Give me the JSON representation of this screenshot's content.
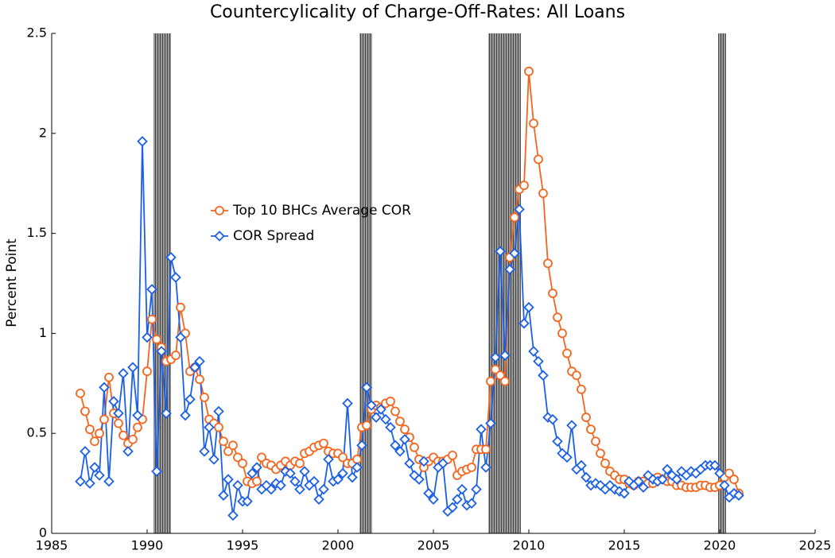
{
  "chart_data": {
    "type": "line",
    "title": "Countercylicality of Charge-Off-Rates: All Loans",
    "y_label": "Percent Point",
    "x": [
      1986.5,
      1986.75,
      1987,
      1987.25,
      1987.5,
      1987.75,
      1988,
      1988.25,
      1988.5,
      1988.75,
      1989,
      1989.25,
      1989.5,
      1989.75,
      1990,
      1990.25,
      1990.5,
      1990.75,
      1991,
      1991.25,
      1991.5,
      1991.75,
      1992,
      1992.25,
      1992.5,
      1992.75,
      1993,
      1993.25,
      1993.5,
      1993.75,
      1994,
      1994.25,
      1994.5,
      1994.75,
      1995,
      1995.25,
      1995.5,
      1995.75,
      1996,
      1996.25,
      1996.5,
      1996.75,
      1997,
      1997.25,
      1997.5,
      1997.75,
      1998,
      1998.25,
      1998.5,
      1998.75,
      1999,
      1999.25,
      1999.5,
      1999.75,
      2000,
      2000.25,
      2000.5,
      2000.75,
      2001,
      2001.25,
      2001.5,
      2001.75,
      2002,
      2002.25,
      2002.5,
      2002.75,
      2003,
      2003.25,
      2003.5,
      2003.75,
      2004,
      2004.25,
      2004.5,
      2004.75,
      2005,
      2005.25,
      2005.5,
      2005.75,
      2006,
      2006.25,
      2006.5,
      2006.75,
      2007,
      2007.25,
      2007.5,
      2007.75,
      2008,
      2008.25,
      2008.5,
      2008.75,
      2009,
      2009.25,
      2009.5,
      2009.75,
      2010,
      2010.25,
      2010.5,
      2010.75,
      2011,
      2011.25,
      2011.5,
      2011.75,
      2012,
      2012.25,
      2012.5,
      2012.75,
      2013,
      2013.25,
      2013.5,
      2013.75,
      2014,
      2014.25,
      2014.5,
      2014.75,
      2015,
      2015.25,
      2015.5,
      2015.75,
      2016,
      2016.25,
      2016.5,
      2016.75,
      2017,
      2017.25,
      2017.5,
      2017.75,
      2018,
      2018.25,
      2018.5,
      2018.75,
      2019,
      2019.25,
      2019.5,
      2019.75,
      2020,
      2020.25,
      2020.5,
      2020.75,
      2021
    ],
    "series": [
      {
        "name": "Top 10 BHCs Average COR",
        "color": "#f4661e",
        "marker": "circle",
        "values": [
          0.7,
          0.61,
          0.52,
          0.46,
          0.5,
          0.57,
          0.78,
          0.6,
          0.55,
          0.49,
          0.45,
          0.47,
          0.53,
          0.57,
          0.81,
          1.07,
          0.97,
          0.93,
          0.86,
          0.87,
          0.89,
          1.13,
          1.0,
          0.81,
          0.83,
          0.77,
          0.68,
          0.57,
          0.55,
          0.53,
          0.46,
          0.41,
          0.44,
          0.38,
          0.35,
          0.26,
          0.25,
          0.26,
          0.38,
          0.35,
          0.34,
          0.32,
          0.34,
          0.36,
          0.34,
          0.36,
          0.35,
          0.4,
          0.41,
          0.43,
          0.44,
          0.45,
          0.41,
          0.4,
          0.4,
          0.38,
          0.35,
          0.35,
          0.37,
          0.53,
          0.54,
          0.62,
          0.64,
          0.63,
          0.65,
          0.66,
          0.61,
          0.56,
          0.52,
          0.48,
          0.43,
          0.37,
          0.33,
          0.36,
          0.38,
          0.36,
          0.36,
          0.37,
          0.39,
          0.29,
          0.31,
          0.32,
          0.33,
          0.42,
          0.42,
          0.42,
          0.76,
          0.82,
          0.79,
          0.76,
          1.38,
          1.58,
          1.72,
          1.74,
          2.31,
          2.05,
          1.87,
          1.7,
          1.35,
          1.2,
          1.08,
          1.0,
          0.9,
          0.81,
          0.79,
          0.72,
          0.58,
          0.52,
          0.46,
          0.4,
          0.35,
          0.31,
          0.29,
          0.27,
          0.27,
          0.25,
          0.24,
          0.26,
          0.26,
          0.25,
          0.25,
          0.28,
          0.27,
          0.26,
          0.26,
          0.24,
          0.24,
          0.23,
          0.23,
          0.23,
          0.24,
          0.24,
          0.23,
          0.23,
          0.24,
          0.28,
          0.3,
          0.27,
          0.2
        ]
      },
      {
        "name": "COR Spread",
        "color": "#1a5fe6",
        "marker": "diamond",
        "values": [
          0.26,
          0.41,
          0.25,
          0.33,
          0.29,
          0.73,
          0.26,
          0.66,
          0.6,
          0.8,
          0.41,
          0.83,
          0.59,
          1.96,
          0.98,
          1.22,
          0.31,
          0.91,
          0.6,
          1.38,
          1.28,
          0.98,
          0.59,
          0.67,
          0.83,
          0.86,
          0.41,
          0.53,
          0.37,
          0.61,
          0.19,
          0.27,
          0.09,
          0.24,
          0.16,
          0.16,
          0.3,
          0.33,
          0.22,
          0.24,
          0.22,
          0.25,
          0.24,
          0.31,
          0.3,
          0.26,
          0.22,
          0.31,
          0.24,
          0.26,
          0.17,
          0.22,
          0.37,
          0.26,
          0.27,
          0.3,
          0.65,
          0.28,
          0.33,
          0.44,
          0.73,
          0.64,
          0.58,
          0.62,
          0.57,
          0.53,
          0.44,
          0.41,
          0.47,
          0.35,
          0.29,
          0.27,
          0.36,
          0.2,
          0.17,
          0.33,
          0.35,
          0.11,
          0.13,
          0.17,
          0.22,
          0.14,
          0.15,
          0.22,
          0.52,
          0.33,
          0.55,
          0.88,
          1.41,
          0.89,
          1.32,
          1.4,
          1.62,
          1.05,
          1.13,
          0.91,
          0.86,
          0.79,
          0.58,
          0.57,
          0.46,
          0.4,
          0.38,
          0.54,
          0.32,
          0.34,
          0.28,
          0.24,
          0.25,
          0.24,
          0.22,
          0.24,
          0.22,
          0.21,
          0.2,
          0.26,
          0.24,
          0.26,
          0.23,
          0.29,
          0.27,
          0.26,
          0.27,
          0.32,
          0.29,
          0.27,
          0.31,
          0.29,
          0.31,
          0.3,
          0.32,
          0.34,
          0.34,
          0.34,
          0.3,
          0.24,
          0.18,
          0.2,
          0.19
        ]
      }
    ],
    "shaded_periods": [
      [
        1990.33,
        1991.25
      ],
      [
        2001.13,
        2001.79
      ],
      [
        2007.88,
        2009.58
      ],
      [
        2019.92,
        2020.33
      ]
    ],
    "xlim": [
      1985,
      2025
    ],
    "xticks": [
      1985,
      1990,
      1995,
      2000,
      2005,
      2010,
      2015,
      2020,
      2025
    ],
    "ylim": [
      0,
      2.5
    ],
    "yticks": [
      0,
      0.5,
      1,
      1.5,
      2,
      2.5
    ],
    "grid": false,
    "legend": "center-left"
  }
}
